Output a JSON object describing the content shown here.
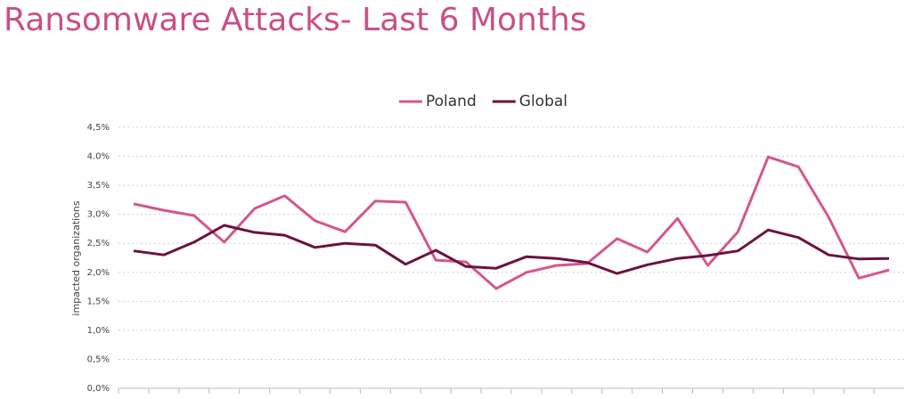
{
  "chart_data": {
    "type": "line",
    "title": "Ransomware Attacks- Last 6 Months",
    "y_label": "impacted organizations",
    "categories": [
      null,
      null,
      null,
      null,
      null,
      null,
      null,
      null,
      null,
      null,
      null,
      null,
      null,
      null,
      null,
      null,
      null,
      null,
      null,
      null,
      null,
      null,
      null,
      null,
      null,
      null
    ],
    "series": [
      {
        "name": "Poland",
        "color": "#d4578e",
        "values": [
          3.18,
          3.07,
          2.98,
          2.52,
          3.1,
          3.32,
          2.89,
          2.7,
          3.23,
          3.21,
          2.21,
          2.18,
          1.72,
          2.0,
          2.12,
          2.15,
          2.58,
          2.35,
          2.93,
          2.12,
          2.7,
          3.99,
          3.82,
          2.95,
          1.9,
          2.04
        ]
      },
      {
        "name": "Global",
        "color": "#6b1340",
        "values": [
          2.37,
          2.3,
          2.52,
          2.81,
          2.69,
          2.64,
          2.43,
          2.5,
          2.47,
          2.14,
          2.38,
          2.1,
          2.07,
          2.27,
          2.24,
          2.17,
          1.98,
          2.13,
          2.24,
          2.29,
          2.37,
          2.73,
          2.6,
          2.3,
          2.23,
          2.24
        ]
      }
    ],
    "ylim": [
      0,
      4.5
    ],
    "yticks": [
      {
        "value": 0,
        "label": "0,0%"
      },
      {
        "value": 0.5,
        "label": "0,5%"
      },
      {
        "value": 1,
        "label": "1,0%"
      },
      {
        "value": 1.5,
        "label": "1,5%"
      },
      {
        "value": 2,
        "label": "2,0%"
      },
      {
        "value": 2.5,
        "label": "2,5%"
      },
      {
        "value": 3,
        "label": "3,0%"
      },
      {
        "value": 3.5,
        "label": "3,5%"
      },
      {
        "value": 4,
        "label": "4.0%"
      },
      {
        "value": 4.5,
        "label": "4,5%"
      }
    ],
    "grid": true,
    "legend": "top"
  }
}
